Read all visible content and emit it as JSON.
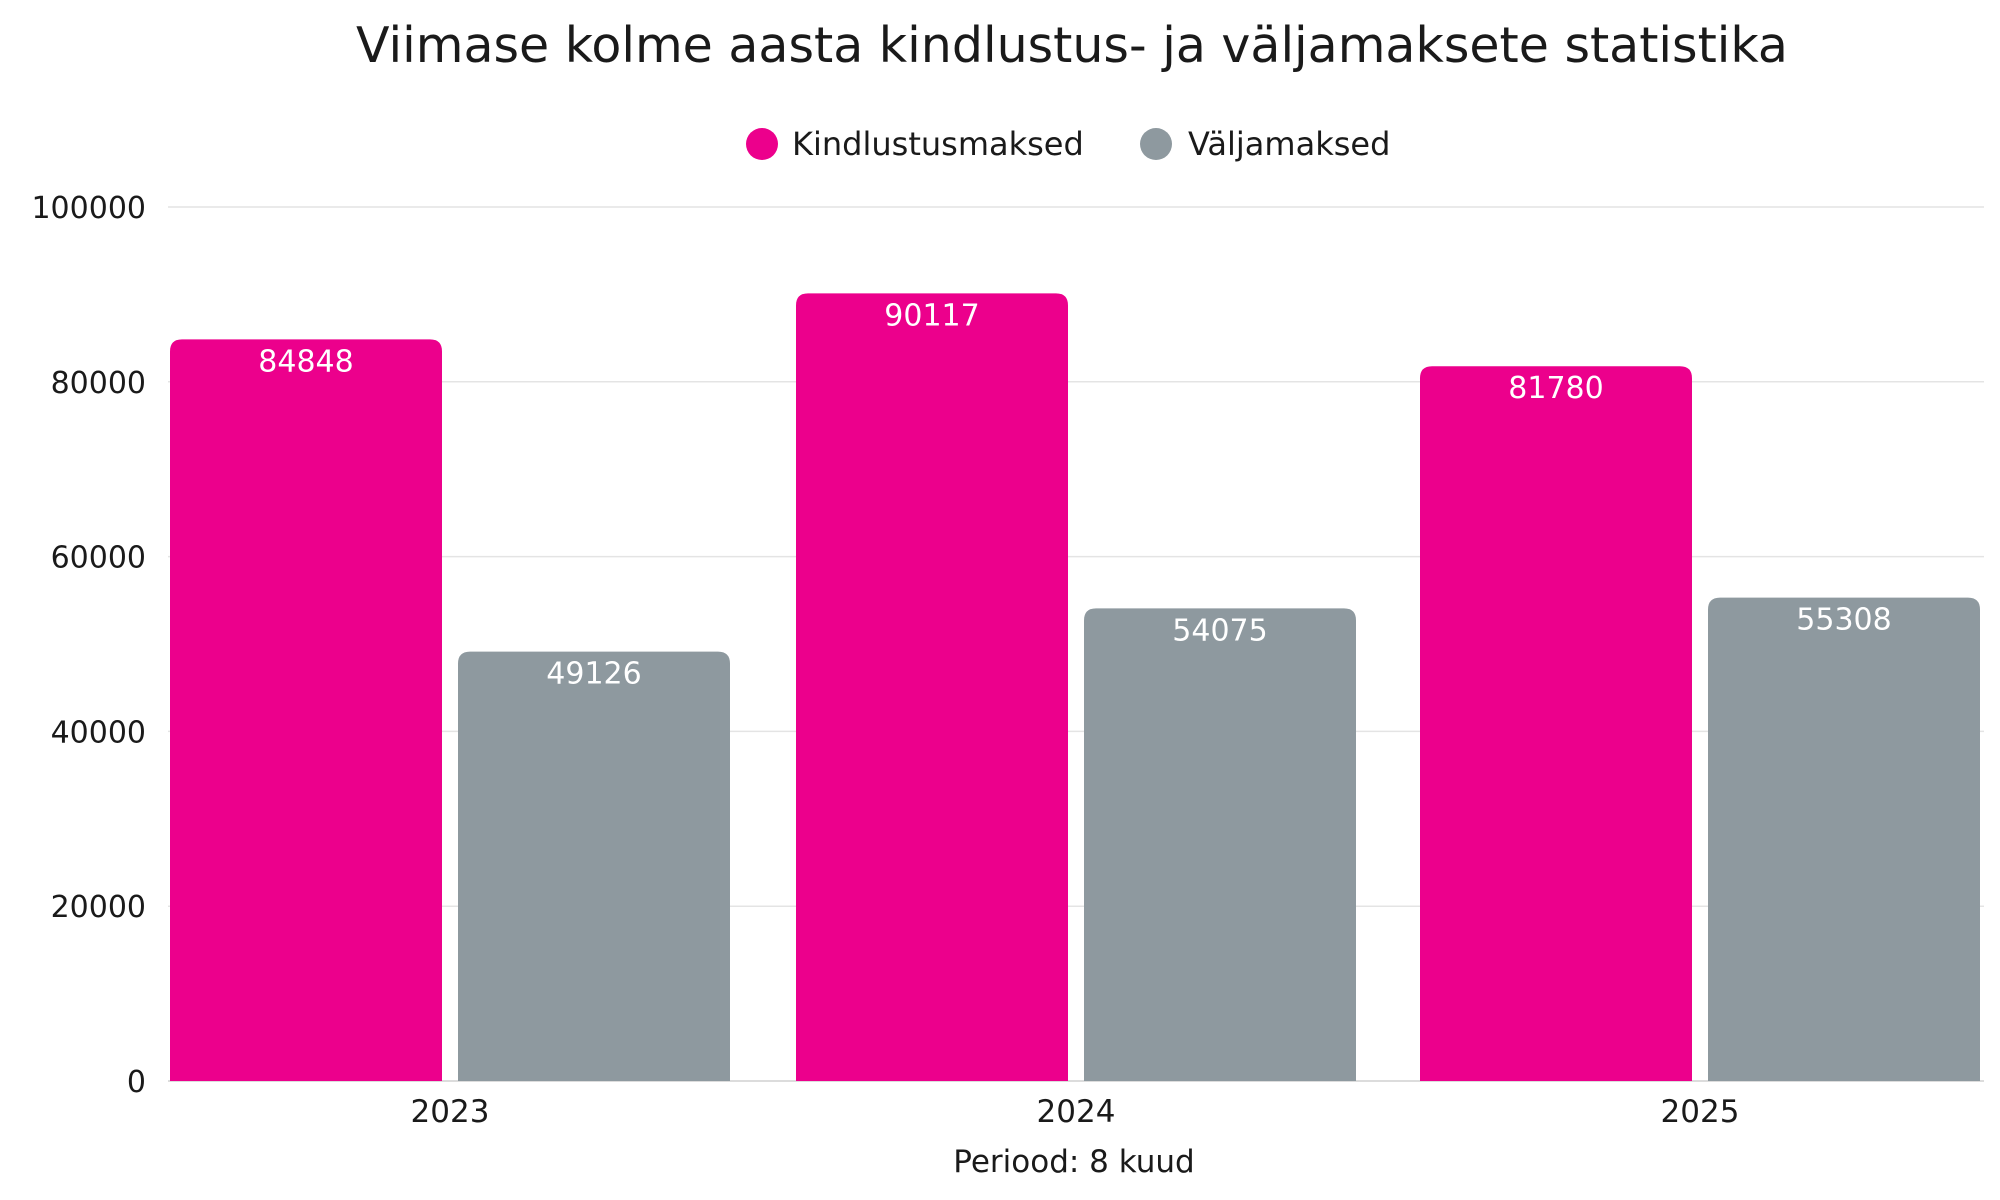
{
  "chart_data": {
    "type": "bar",
    "title": "Viimase kolme aasta kindlustus- ja väljamaksete statistika",
    "xlabel": "Periood: 8 kuud",
    "ylabel": "",
    "categories": [
      "2023",
      "2024",
      "2025"
    ],
    "series": [
      {
        "name": "Kindlustusmaksed",
        "color": "#ec008c",
        "values": [
          84848,
          90117,
          81780
        ]
      },
      {
        "name": "Väljamaksed",
        "color": "#8e999f",
        "values": [
          49126,
          54075,
          55308
        ]
      }
    ],
    "ylim": [
      0,
      100000
    ],
    "yticks": [
      "0",
      "20000",
      "40000",
      "60000",
      "80000",
      "100000"
    ],
    "grid": true,
    "legend_position": "top-center"
  }
}
